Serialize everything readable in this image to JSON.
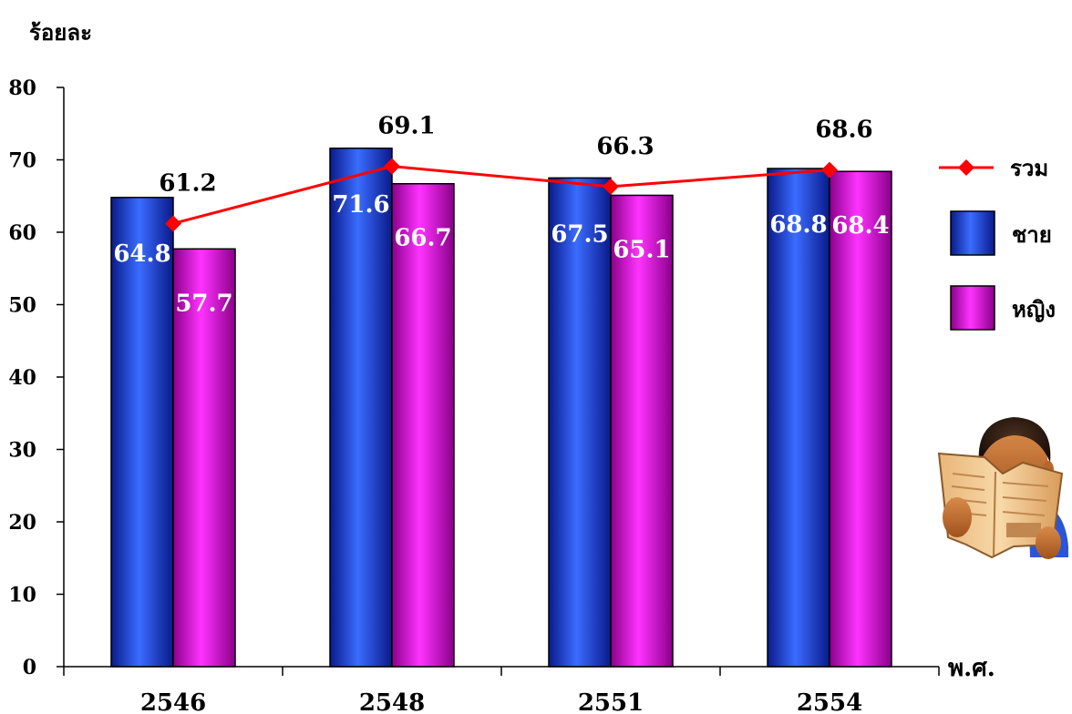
{
  "chart_data": {
    "type": "bar",
    "ylabel": "ร้อยละ",
    "xlabel": "พ.ศ.",
    "categories": [
      "2546",
      "2548",
      "2551",
      "2554"
    ],
    "ylim": [
      0,
      80
    ],
    "yticks": [
      0,
      10,
      20,
      30,
      40,
      50,
      60,
      70,
      80
    ],
    "grid": false,
    "legend_position": "right",
    "series": [
      {
        "name": "ชาย",
        "kind": "bar",
        "color": "#1f3fd6",
        "values": [
          64.8,
          71.6,
          67.5,
          68.8
        ]
      },
      {
        "name": "หญิง",
        "kind": "bar",
        "color": "#e600e6",
        "values": [
          57.7,
          66.7,
          65.1,
          68.4
        ]
      },
      {
        "name": "รวม",
        "kind": "line",
        "color": "#ff0000",
        "marker": "diamond",
        "values": [
          61.2,
          69.1,
          66.3,
          68.6
        ]
      }
    ],
    "illustration": "person-reading-newspaper-icon"
  }
}
